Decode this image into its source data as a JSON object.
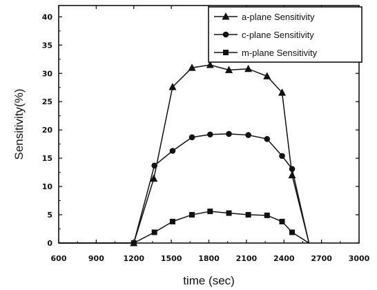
{
  "chart_data": {
    "type": "line",
    "title": "",
    "xlabel": "time (sec)",
    "ylabel": "Sensitivity(%)",
    "xlim": [
      600,
      3000
    ],
    "ylim": [
      0,
      42
    ],
    "xticks": [
      600,
      900,
      1200,
      1500,
      1800,
      2100,
      2400,
      2700,
      3000
    ],
    "yticks": [
      0,
      5,
      10,
      15,
      20,
      25,
      30,
      35,
      40
    ],
    "grid": false,
    "legend": "top-right",
    "series": [
      {
        "name": "a-plane Sensitivity",
        "marker": "triangle",
        "color": "#111111",
        "x": [
          600,
          1200,
          1360,
          1510,
          1665,
          1810,
          1960,
          2115,
          2265,
          2385,
          2465,
          2600
        ],
        "y": [
          0,
          0,
          11.4,
          27.6,
          31.0,
          31.5,
          30.6,
          30.8,
          29.5,
          26.6,
          12.0,
          0
        ]
      },
      {
        "name": "c-plane Sensitivity",
        "marker": "circle",
        "color": "#111111",
        "x": [
          600,
          1200,
          1365,
          1510,
          1665,
          1810,
          1960,
          2115,
          2265,
          2385,
          2465,
          2600
        ],
        "y": [
          0,
          0,
          13.7,
          16.3,
          18.7,
          19.2,
          19.3,
          19.1,
          18.4,
          15.4,
          13.1,
          0
        ]
      },
      {
        "name": "m-plane Sensitivity",
        "marker": "square",
        "color": "#111111",
        "x": [
          600,
          1200,
          1365,
          1510,
          1665,
          1810,
          1960,
          2115,
          2265,
          2385,
          2465,
          2600
        ],
        "y": [
          0,
          0,
          1.9,
          3.8,
          5.0,
          5.6,
          5.3,
          5.0,
          4.9,
          3.8,
          1.9,
          0
        ]
      }
    ]
  }
}
